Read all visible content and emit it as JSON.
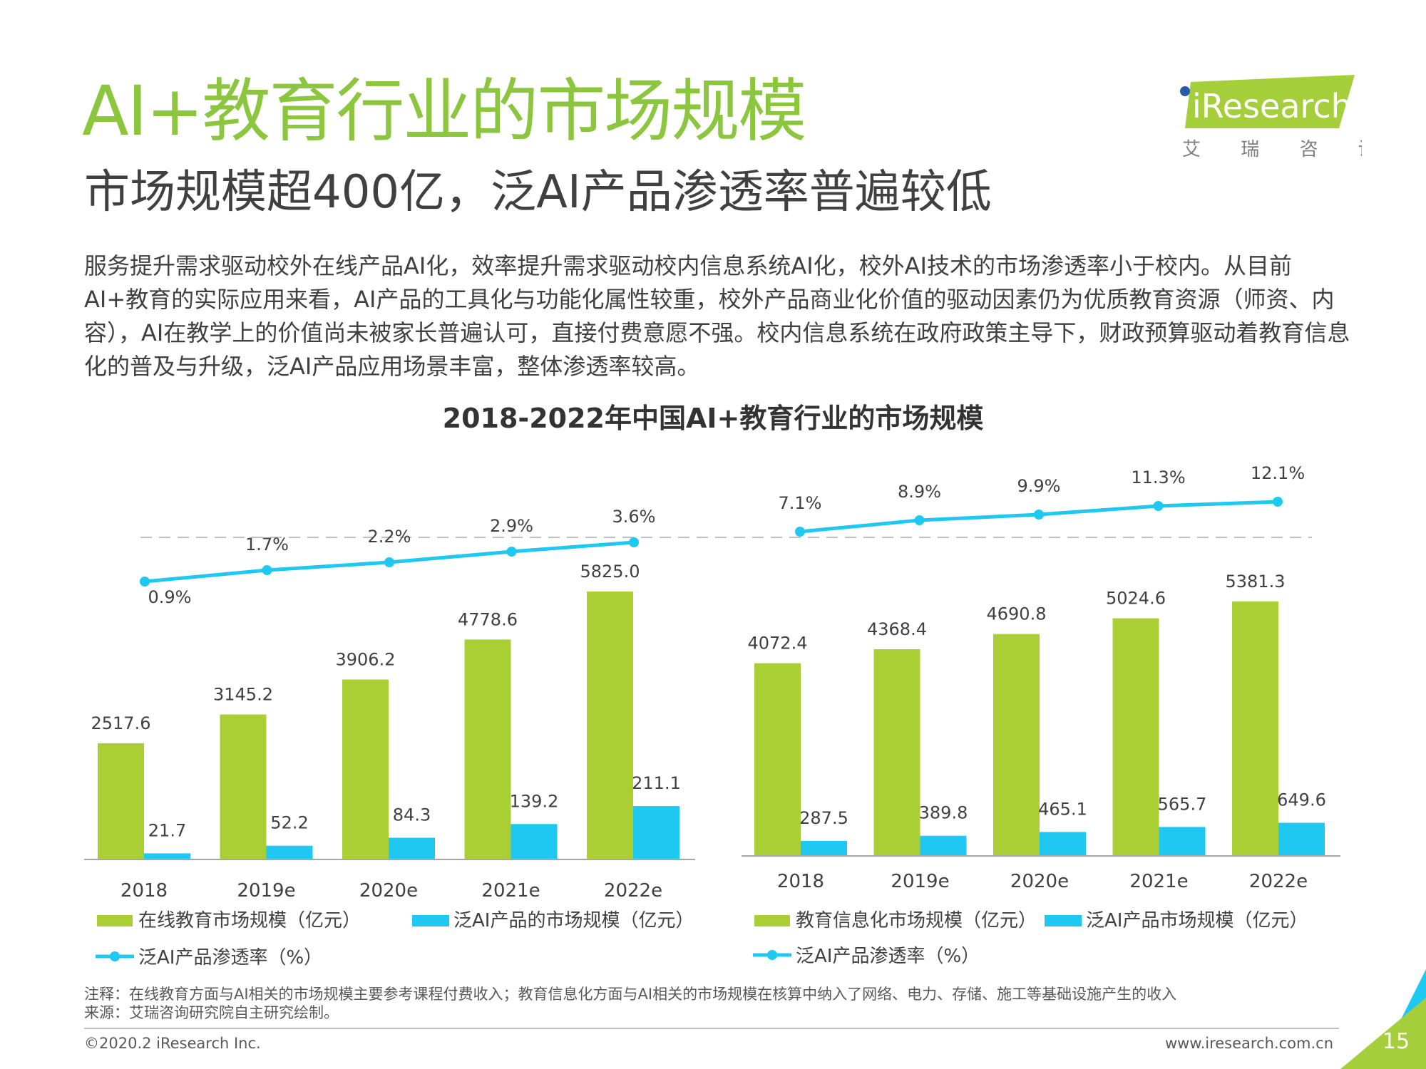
{
  "header": {
    "title": "AI+教育行业的市场规模",
    "subtitle": "市场规模超400亿，泛AI产品渗透率普遍较低",
    "body": "服务提升需求驱动校外在线产品AI化，效率提升需求驱动校内信息系统AI化，校外AI技术的市场渗透率小于校内。从目前AI+教育的实际应用来看，AI产品的工具化与功能化属性较重，校外产品商业化价值的驱动因素仍为优质教育资源（师资、内容），AI在教学上的价值尚未被家长普遍认可，直接付费意愿不强。校内信息系统在政府政策主导下，财政预算驱动着教育信息化的普及与升级，泛AI产品应用场景丰富，整体渗透率较高。"
  },
  "logo": {
    "brand": "iResearch",
    "tagline": "艾 瑞 咨 询"
  },
  "chart_title": "2018-2022年中国AI+教育行业的市场规模",
  "colors": {
    "green_bar": "#aacf34",
    "blue_bar": "#1ec8f0",
    "line": "#1ec8f0",
    "title_green": "#8cc63f"
  },
  "chart_data": [
    {
      "type": "bar",
      "categories": [
        "2018",
        "2019e",
        "2020e",
        "2021e",
        "2022e"
      ],
      "series": [
        {
          "name": "在线教育市场规模（亿元）",
          "values": [
            2517.6,
            3145.2,
            3906.2,
            4778.6,
            5825.0
          ],
          "labels": [
            "2517.6",
            "3145.2",
            "3906.2",
            "4778.6",
            "5825.0"
          ]
        },
        {
          "name": "泛AI产品的市场规模（亿元）",
          "values": [
            21.7,
            52.2,
            84.3,
            139.2,
            211.1
          ],
          "labels": [
            "21.7",
            "52.2",
            "84.3",
            "139.2",
            "211.1"
          ]
        },
        {
          "name": "泛AI产品渗透率（%）",
          "type": "line",
          "values": [
            0.9,
            1.7,
            2.2,
            2.9,
            3.6
          ],
          "labels": [
            "0.9%",
            "1.7%",
            "2.2%",
            "2.9%",
            "3.6%"
          ]
        }
      ]
    },
    {
      "type": "bar",
      "categories": [
        "2018",
        "2019e",
        "2020e",
        "2021e",
        "2022e"
      ],
      "series": [
        {
          "name": "教育信息化市场规模（亿元）",
          "values": [
            4072.4,
            4368.4,
            4690.8,
            5024.6,
            5381.3
          ],
          "labels": [
            "4072.4",
            "4368.4",
            "4690.8",
            "5024.6",
            "5381.3"
          ]
        },
        {
          "name": "泛AI产品市场规模（亿元）",
          "values": [
            287.5,
            389.8,
            465.1,
            565.7,
            649.6
          ],
          "labels": [
            "287.5",
            "389.8",
            "465.1",
            "565.7",
            "649.6"
          ]
        },
        {
          "name": "泛AI产品渗透率（%）",
          "type": "line",
          "values": [
            7.1,
            8.9,
            9.9,
            11.3,
            12.1
          ],
          "labels": [
            "7.1%",
            "8.9%",
            "9.9%",
            "11.3%",
            "12.1%"
          ]
        }
      ]
    }
  ],
  "notes": {
    "note": "注释：在线教育方面与AI相关的市场规模主要参考课程付费收入；教育信息化方面与AI相关的市场规模在核算中纳入了网络、电力、存储、施工等基础设施产生的收入",
    "source": "来源：艾瑞咨询研究院自主研究绘制。"
  },
  "footer": {
    "copyright": "©2020.2 iResearch Inc.",
    "website": "www.iresearch.com.cn",
    "page": "15"
  }
}
